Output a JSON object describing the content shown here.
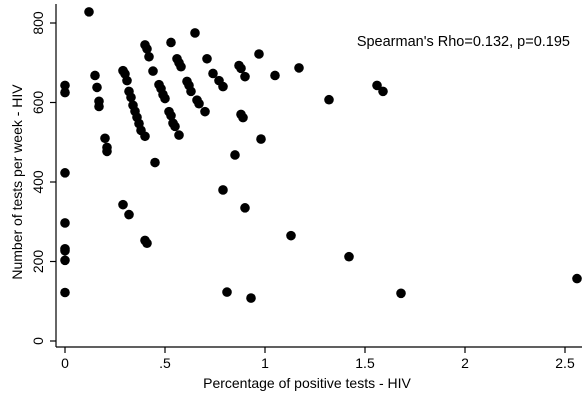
{
  "chart_data": {
    "type": "scatter",
    "xlabel": "Percentage of positive tests - HIV",
    "ylabel": "Number of tests per week - HIV",
    "annotation": "Spearman's Rho=0.132, p=0.195",
    "xlim": [
      0,
      2.6
    ],
    "ylim": [
      0,
      850
    ],
    "x_ticks": [
      0,
      0.5,
      1,
      1.5,
      2,
      2.5
    ],
    "x_tick_labels": [
      "0",
      ".5",
      "1",
      "1.5",
      "2",
      "2.5"
    ],
    "y_ticks": [
      0,
      200,
      400,
      600,
      800
    ],
    "y_tick_labels": [
      "0",
      "200",
      "400",
      "600",
      "800"
    ],
    "grid": false,
    "point_color": "#000000",
    "points": [
      {
        "x": 0.0,
        "y": 643
      },
      {
        "x": 0.0,
        "y": 625
      },
      {
        "x": 0.0,
        "y": 423
      },
      {
        "x": 0.0,
        "y": 297
      },
      {
        "x": 0.0,
        "y": 232
      },
      {
        "x": 0.0,
        "y": 227
      },
      {
        "x": 0.0,
        "y": 203
      },
      {
        "x": 0.0,
        "y": 122
      },
      {
        "x": 0.12,
        "y": 828
      },
      {
        "x": 0.15,
        "y": 668
      },
      {
        "x": 0.16,
        "y": 638
      },
      {
        "x": 0.17,
        "y": 603
      },
      {
        "x": 0.17,
        "y": 590
      },
      {
        "x": 0.2,
        "y": 510
      },
      {
        "x": 0.21,
        "y": 487
      },
      {
        "x": 0.21,
        "y": 477
      },
      {
        "x": 0.29,
        "y": 680
      },
      {
        "x": 0.3,
        "y": 672
      },
      {
        "x": 0.31,
        "y": 655
      },
      {
        "x": 0.32,
        "y": 628
      },
      {
        "x": 0.33,
        "y": 613
      },
      {
        "x": 0.34,
        "y": 593
      },
      {
        "x": 0.35,
        "y": 578
      },
      {
        "x": 0.36,
        "y": 563
      },
      {
        "x": 0.37,
        "y": 547
      },
      {
        "x": 0.38,
        "y": 530
      },
      {
        "x": 0.4,
        "y": 515
      },
      {
        "x": 0.29,
        "y": 343
      },
      {
        "x": 0.32,
        "y": 318
      },
      {
        "x": 0.4,
        "y": 745
      },
      {
        "x": 0.41,
        "y": 735
      },
      {
        "x": 0.42,
        "y": 715
      },
      {
        "x": 0.4,
        "y": 253
      },
      {
        "x": 0.41,
        "y": 246
      },
      {
        "x": 0.44,
        "y": 679
      },
      {
        "x": 0.45,
        "y": 449
      },
      {
        "x": 0.47,
        "y": 645
      },
      {
        "x": 0.48,
        "y": 635
      },
      {
        "x": 0.49,
        "y": 620
      },
      {
        "x": 0.5,
        "y": 610
      },
      {
        "x": 0.52,
        "y": 577
      },
      {
        "x": 0.53,
        "y": 567
      },
      {
        "x": 0.54,
        "y": 548
      },
      {
        "x": 0.55,
        "y": 540
      },
      {
        "x": 0.57,
        "y": 518
      },
      {
        "x": 0.53,
        "y": 751
      },
      {
        "x": 0.56,
        "y": 710
      },
      {
        "x": 0.57,
        "y": 700
      },
      {
        "x": 0.58,
        "y": 690
      },
      {
        "x": 0.61,
        "y": 653
      },
      {
        "x": 0.62,
        "y": 643
      },
      {
        "x": 0.63,
        "y": 628
      },
      {
        "x": 0.65,
        "y": 775
      },
      {
        "x": 0.66,
        "y": 606
      },
      {
        "x": 0.67,
        "y": 597
      },
      {
        "x": 0.7,
        "y": 577
      },
      {
        "x": 0.71,
        "y": 710
      },
      {
        "x": 0.74,
        "y": 673
      },
      {
        "x": 0.77,
        "y": 655
      },
      {
        "x": 0.79,
        "y": 640
      },
      {
        "x": 0.79,
        "y": 380
      },
      {
        "x": 0.81,
        "y": 123
      },
      {
        "x": 0.85,
        "y": 468
      },
      {
        "x": 0.87,
        "y": 693
      },
      {
        "x": 0.88,
        "y": 686
      },
      {
        "x": 0.88,
        "y": 570
      },
      {
        "x": 0.89,
        "y": 562
      },
      {
        "x": 0.9,
        "y": 665
      },
      {
        "x": 0.9,
        "y": 335
      },
      {
        "x": 0.93,
        "y": 108
      },
      {
        "x": 0.97,
        "y": 722
      },
      {
        "x": 0.98,
        "y": 508
      },
      {
        "x": 1.05,
        "y": 668
      },
      {
        "x": 1.13,
        "y": 265
      },
      {
        "x": 1.17,
        "y": 687
      },
      {
        "x": 1.32,
        "y": 607
      },
      {
        "x": 1.42,
        "y": 212
      },
      {
        "x": 1.56,
        "y": 643
      },
      {
        "x": 1.59,
        "y": 628
      },
      {
        "x": 1.68,
        "y": 120
      },
      {
        "x": 2.56,
        "y": 157
      }
    ]
  }
}
